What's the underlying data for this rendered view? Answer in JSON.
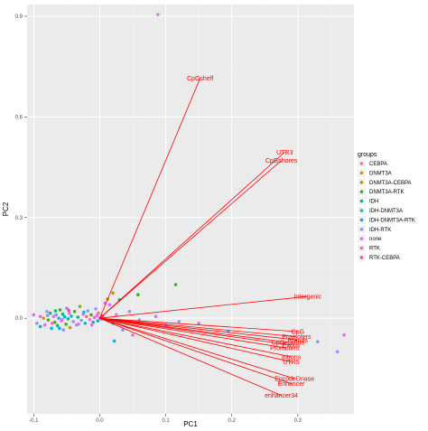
{
  "chart_data": {
    "type": "scatter",
    "subtype": "pca-biplot",
    "xlabel": "PC1",
    "ylabel": "PC2",
    "xlim": [
      -0.11,
      0.385
    ],
    "ylim": [
      -0.285,
      0.935
    ],
    "x_ticks": [
      -0.1,
      0.0,
      0.1,
      0.2,
      0.3
    ],
    "x_tick_labels": [
      "-0.1",
      "0.0",
      "0.1",
      "0.2",
      "0.3"
    ],
    "y_ticks": [
      0.0,
      0.3,
      0.6,
      0.9
    ],
    "y_tick_labels": [
      "0.0",
      "0.3",
      "0.6",
      "0.9"
    ],
    "grid": true,
    "panel_background": "#ebebeb",
    "legend_title": "groups",
    "legend_position": "right",
    "groups": [
      {
        "name": "CEBPA",
        "color": "#F8766D"
      },
      {
        "name": "DNMT3A",
        "color": "#D89000"
      },
      {
        "name": "DNMT3A-CEBPA",
        "color": "#A3A500"
      },
      {
        "name": "DNMT3A-RTK",
        "color": "#39B600"
      },
      {
        "name": "IDH",
        "color": "#00BF7D"
      },
      {
        "name": "IDH-DNMT3A",
        "color": "#00BFC4"
      },
      {
        "name": "IDH-DNMT3A-RTK",
        "color": "#00B0F6"
      },
      {
        "name": "IDH-RTK",
        "color": "#9590FF"
      },
      {
        "name": "none",
        "color": "#E76BF3"
      },
      {
        "name": "RTK",
        "color": "#FF62BC"
      },
      {
        "name": "RTK-CEBPA",
        "color": "#FF40A0"
      }
    ],
    "vector_origin": [
      0,
      0
    ],
    "vectors": [
      {
        "label": "CpGshelf",
        "x": 0.152,
        "y": 0.715
      },
      {
        "label": "UTR3",
        "x": 0.28,
        "y": 0.495
      },
      {
        "label": "CpGshores",
        "x": 0.275,
        "y": 0.47
      },
      {
        "label": "Intergenic",
        "x": 0.315,
        "y": 0.065
      },
      {
        "label": "CpG",
        "x": 0.3,
        "y": -0.04
      },
      {
        "label": "Promoters",
        "x": 0.298,
        "y": -0.055
      },
      {
        "label": "Islands",
        "x": 0.3,
        "y": -0.065
      },
      {
        "label": "CpGislands",
        "x": 0.285,
        "y": -0.072
      },
      {
        "label": "Exons",
        "x": 0.29,
        "y": -0.08
      },
      {
        "label": "Promoters",
        "x": 0.28,
        "y": -0.088
      },
      {
        "label": "Introns",
        "x": 0.29,
        "y": -0.115
      },
      {
        "label": "UTR5",
        "x": 0.29,
        "y": -0.13
      },
      {
        "label": "EncodeDnase",
        "x": 0.295,
        "y": -0.18
      },
      {
        "label": "Enhancer",
        "x": 0.29,
        "y": -0.195
      },
      {
        "label": "enhancer34",
        "x": 0.275,
        "y": -0.23
      }
    ],
    "points": [
      {
        "x": 0.088,
        "y": 0.905,
        "g": "none"
      },
      {
        "x": 0.02,
        "y": 0.075,
        "g": "DNMT3A-CEBPA"
      },
      {
        "x": 0.058,
        "y": 0.07,
        "g": "DNMT3A-RTK"
      },
      {
        "x": 0.115,
        "y": 0.1,
        "g": "DNMT3A-RTK"
      },
      {
        "x": 0.012,
        "y": 0.057,
        "g": "DNMT3A-CEBPA"
      },
      {
        "x": 0.03,
        "y": 0.055,
        "g": "IDH"
      },
      {
        "x": 0.008,
        "y": 0.045,
        "g": "none"
      },
      {
        "x": 0.015,
        "y": 0.04,
        "g": "none"
      },
      {
        "x": 0.045,
        "y": 0.02,
        "g": "IDH-RTK"
      },
      {
        "x": 0.025,
        "y": 0.01,
        "g": "none"
      },
      {
        "x": 0.085,
        "y": 0.005,
        "g": "none"
      },
      {
        "x": 0.06,
        "y": -0.005,
        "g": "IDH-RTK"
      },
      {
        "x": 0.12,
        "y": -0.01,
        "g": "IDH-RTK"
      },
      {
        "x": 0.15,
        "y": -0.015,
        "g": "none"
      },
      {
        "x": 0.1,
        "y": -0.02,
        "g": "none"
      },
      {
        "x": 0.02,
        "y": -0.015,
        "g": "IDH-DNMT3A"
      },
      {
        "x": 0.035,
        "y": -0.035,
        "g": "IDH-RTK"
      },
      {
        "x": 0.05,
        "y": -0.05,
        "g": "none"
      },
      {
        "x": 0.022,
        "y": -0.068,
        "g": "IDH-DNMT3A-RTK"
      },
      {
        "x": 0.195,
        "y": -0.04,
        "g": "IDH-RTK"
      },
      {
        "x": 0.33,
        "y": -0.07,
        "g": "IDH-RTK"
      },
      {
        "x": 0.37,
        "y": -0.05,
        "g": "none"
      },
      {
        "x": 0.36,
        "y": -0.1,
        "g": "IDH-RTK"
      },
      {
        "x": -0.1,
        "y": 0.01,
        "g": "none"
      },
      {
        "x": -0.095,
        "y": -0.015,
        "g": "IDH-RTK"
      },
      {
        "x": -0.09,
        "y": -0.025,
        "g": "IDH-DNMT3A"
      },
      {
        "x": -0.085,
        "y": 0.0,
        "g": "DNMT3A"
      },
      {
        "x": -0.083,
        "y": -0.02,
        "g": "none"
      },
      {
        "x": -0.08,
        "y": 0.02,
        "g": "IDH-RTK"
      },
      {
        "x": -0.078,
        "y": -0.005,
        "g": "DNMT3A-RTK"
      },
      {
        "x": -0.075,
        "y": 0.015,
        "g": "IDH"
      },
      {
        "x": -0.073,
        "y": -0.03,
        "g": "IDH-DNMT3A-RTK"
      },
      {
        "x": -0.07,
        "y": 0.005,
        "g": "none"
      },
      {
        "x": -0.068,
        "y": -0.012,
        "g": "DNMT3A-RTK"
      },
      {
        "x": -0.066,
        "y": 0.01,
        "g": "IDH-RTK"
      },
      {
        "x": -0.064,
        "y": -0.022,
        "g": "IDH"
      },
      {
        "x": -0.062,
        "y": 0.0,
        "g": "IDH-DNMT3A"
      },
      {
        "x": -0.06,
        "y": 0.025,
        "g": "DNMT3A-RTK"
      },
      {
        "x": -0.058,
        "y": -0.008,
        "g": "none"
      },
      {
        "x": -0.056,
        "y": 0.012,
        "g": "IDH"
      },
      {
        "x": -0.055,
        "y": -0.035,
        "g": "IDH-RTK"
      },
      {
        "x": -0.053,
        "y": 0.004,
        "g": "IDH-DNMT3A-RTK"
      },
      {
        "x": -0.051,
        "y": -0.018,
        "g": "DNMT3A-RTK"
      },
      {
        "x": -0.05,
        "y": 0.03,
        "g": "IDH-RTK"
      },
      {
        "x": -0.048,
        "y": -0.002,
        "g": "IDH"
      },
      {
        "x": -0.046,
        "y": 0.015,
        "g": "none"
      },
      {
        "x": -0.045,
        "y": -0.028,
        "g": "DNMT3A"
      },
      {
        "x": -0.043,
        "y": 0.006,
        "g": "IDH-DNMT3A"
      },
      {
        "x": -0.04,
        "y": -0.01,
        "g": "IDH-RTK"
      },
      {
        "x": -0.038,
        "y": 0.02,
        "g": "DNMT3A-RTK"
      },
      {
        "x": -0.035,
        "y": -0.02,
        "g": "none"
      },
      {
        "x": -0.033,
        "y": 0.003,
        "g": "IDH"
      },
      {
        "x": -0.03,
        "y": 0.035,
        "g": "DNMT3A-CEBPA"
      },
      {
        "x": -0.028,
        "y": -0.006,
        "g": "IDH-RTK"
      },
      {
        "x": -0.025,
        "y": 0.012,
        "g": "none"
      },
      {
        "x": -0.022,
        "y": -0.015,
        "g": "IDH-DNMT3A"
      },
      {
        "x": -0.02,
        "y": 0.005,
        "g": "CEBPA"
      },
      {
        "x": -0.018,
        "y": 0.022,
        "g": "IDH-RTK"
      },
      {
        "x": -0.015,
        "y": -0.004,
        "g": "none"
      },
      {
        "x": -0.013,
        "y": 0.01,
        "g": "DNMT3A-RTK"
      },
      {
        "x": -0.01,
        "y": -0.012,
        "g": "IDH"
      },
      {
        "x": -0.008,
        "y": 0.002,
        "g": "RTK"
      },
      {
        "x": -0.006,
        "y": 0.028,
        "g": "IDH-RTK"
      },
      {
        "x": -0.004,
        "y": 0.008,
        "g": "none"
      },
      {
        "x": -0.003,
        "y": -0.008,
        "g": "IDH-DNMT3A-RTK"
      },
      {
        "x": -0.002,
        "y": 0.015,
        "g": "CEBPA"
      },
      {
        "x": 0.0,
        "y": 0.0,
        "g": "none"
      },
      {
        "x": 0.002,
        "y": -0.003,
        "g": "IDH-RTK"
      },
      {
        "x": 0.004,
        "y": 0.006,
        "g": "RTK-CEBPA"
      },
      {
        "x": 0.006,
        "y": -0.002,
        "g": "IDH"
      },
      {
        "x": -0.09,
        "y": 0.005,
        "g": "none"
      },
      {
        "x": -0.072,
        "y": -0.015,
        "g": "RTK"
      },
      {
        "x": -0.061,
        "y": -0.03,
        "g": "IDH-DNMT3A-RTK"
      },
      {
        "x": -0.047,
        "y": 0.024,
        "g": "RTK-CEBPA"
      },
      {
        "x": -0.032,
        "y": -0.018,
        "g": "IDH-RTK"
      },
      {
        "x": -0.024,
        "y": 0.018,
        "g": "IDH-DNMT3A"
      },
      {
        "x": -0.012,
        "y": -0.02,
        "g": "none"
      },
      {
        "x": -0.067,
        "y": 0.022,
        "g": "IDH"
      },
      {
        "x": -0.079,
        "y": 0.008,
        "g": "IDH-RTK"
      },
      {
        "x": -0.057,
        "y": -0.004,
        "g": "none"
      }
    ]
  }
}
